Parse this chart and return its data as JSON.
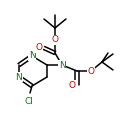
{
  "bg_color": "#ffffff",
  "bond_color": "#000000",
  "atom_colors": {
    "N": "#008000",
    "O": "#cc0000",
    "Cl": "#008000",
    "C": "#000000"
  },
  "bond_width": 1.1
}
